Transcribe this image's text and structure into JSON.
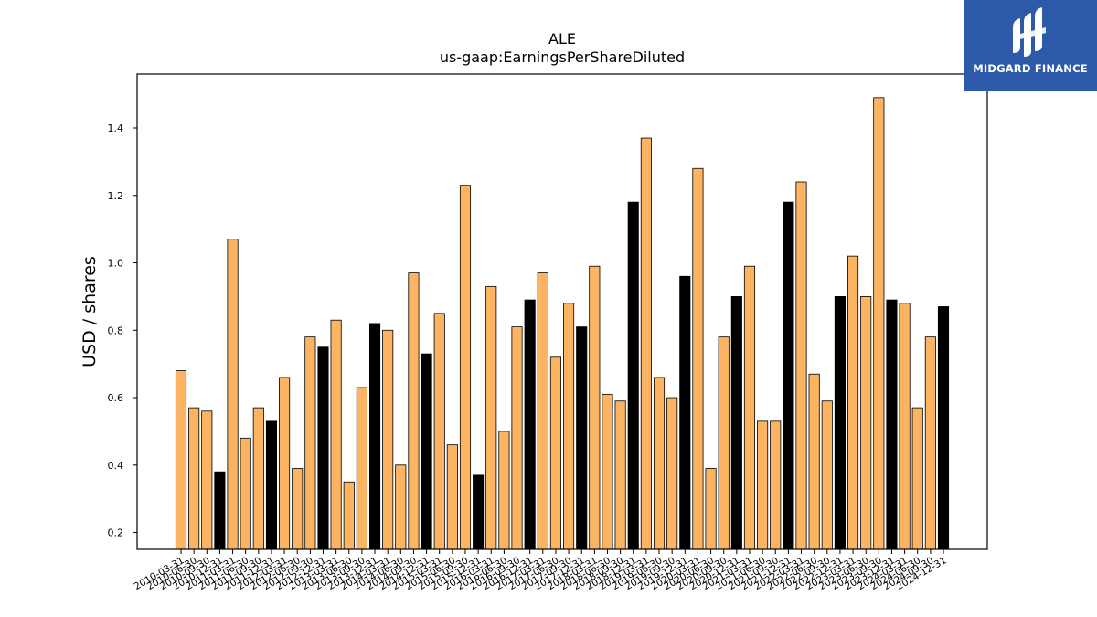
{
  "logo": {
    "text": "MIDGARD FINANCE",
    "bg_color": "#2d5aa8"
  },
  "chart_data": {
    "type": "bar",
    "title": "ALE",
    "subtitle": "us-gaap:EarningsPerShareDiluted",
    "xlabel": "",
    "ylabel": "USD / shares",
    "ylim": [
      0.15,
      1.56
    ],
    "yticks": [
      0.2,
      0.4,
      0.6,
      0.8,
      1.0,
      1.2,
      1.4
    ],
    "ytick_labels": [
      "0.2",
      "0.4",
      "0.6",
      "0.8",
      "1.0",
      "1.2",
      "1.4"
    ],
    "colors": {
      "quarter": "#FDB462",
      "year_end": "#000000",
      "edge": "#000000"
    },
    "categories": [
      "2010-03-31",
      "2010-06-30",
      "2010-09-30",
      "2010-12-31",
      "2011-03-31",
      "2011-06-30",
      "2011-09-30",
      "2011-12-31",
      "2012-03-31",
      "2012-06-30",
      "2012-09-30",
      "2012-12-31",
      "2013-03-31",
      "2013-06-30",
      "2013-09-30",
      "2013-12-31",
      "2014-03-31",
      "2014-06-30",
      "2014-09-30",
      "2014-12-31",
      "2015-03-31",
      "2015-06-30",
      "2015-09-30",
      "2015-12-31",
      "2016-03-31",
      "2016-06-30",
      "2016-09-30",
      "2016-12-31",
      "2017-03-31",
      "2017-06-30",
      "2017-09-30",
      "2017-12-31",
      "2018-03-31",
      "2018-06-30",
      "2018-09-30",
      "2018-12-31",
      "2019-03-31",
      "2019-06-30",
      "2019-09-30",
      "2019-12-31",
      "2020-03-31",
      "2020-06-30",
      "2020-09-30",
      "2020-12-31",
      "2021-03-31",
      "2021-06-30",
      "2021-09-30",
      "2021-12-31",
      "2022-03-31",
      "2022-06-30",
      "2022-09-30",
      "2022-12-31",
      "2023-03-31",
      "2023-06-30",
      "2023-09-30",
      "2023-12-31",
      "2024-03-31",
      "2024-06-30",
      "2024-09-30",
      "2024-12-31"
    ],
    "values": [
      0.68,
      0.57,
      0.56,
      0.38,
      1.07,
      0.48,
      0.57,
      0.53,
      0.66,
      0.39,
      0.78,
      0.75,
      0.83,
      0.35,
      0.63,
      0.82,
      0.8,
      0.4,
      0.97,
      0.73,
      0.85,
      0.46,
      1.23,
      0.37,
      0.93,
      0.5,
      0.81,
      0.89,
      0.97,
      0.72,
      0.88,
      0.81,
      0.99,
      0.61,
      0.59,
      1.18,
      1.37,
      0.66,
      0.6,
      0.96,
      1.28,
      0.39,
      0.78,
      0.9,
      0.99,
      0.53,
      0.53,
      1.18,
      1.24,
      0.67,
      0.59,
      0.9,
      1.02,
      0.9,
      1.49,
      0.89,
      0.88,
      0.57,
      0.78,
      0.87
    ],
    "year_end": [
      false,
      false,
      false,
      true,
      false,
      false,
      false,
      true,
      false,
      false,
      false,
      true,
      false,
      false,
      false,
      true,
      false,
      false,
      false,
      true,
      false,
      false,
      false,
      true,
      false,
      false,
      false,
      true,
      false,
      false,
      false,
      true,
      false,
      false,
      false,
      true,
      false,
      false,
      false,
      true,
      false,
      false,
      false,
      true,
      false,
      false,
      false,
      true,
      false,
      false,
      false,
      true,
      false,
      false,
      false,
      true,
      false,
      false,
      false,
      true
    ],
    "grid": false,
    "legend": "none"
  }
}
